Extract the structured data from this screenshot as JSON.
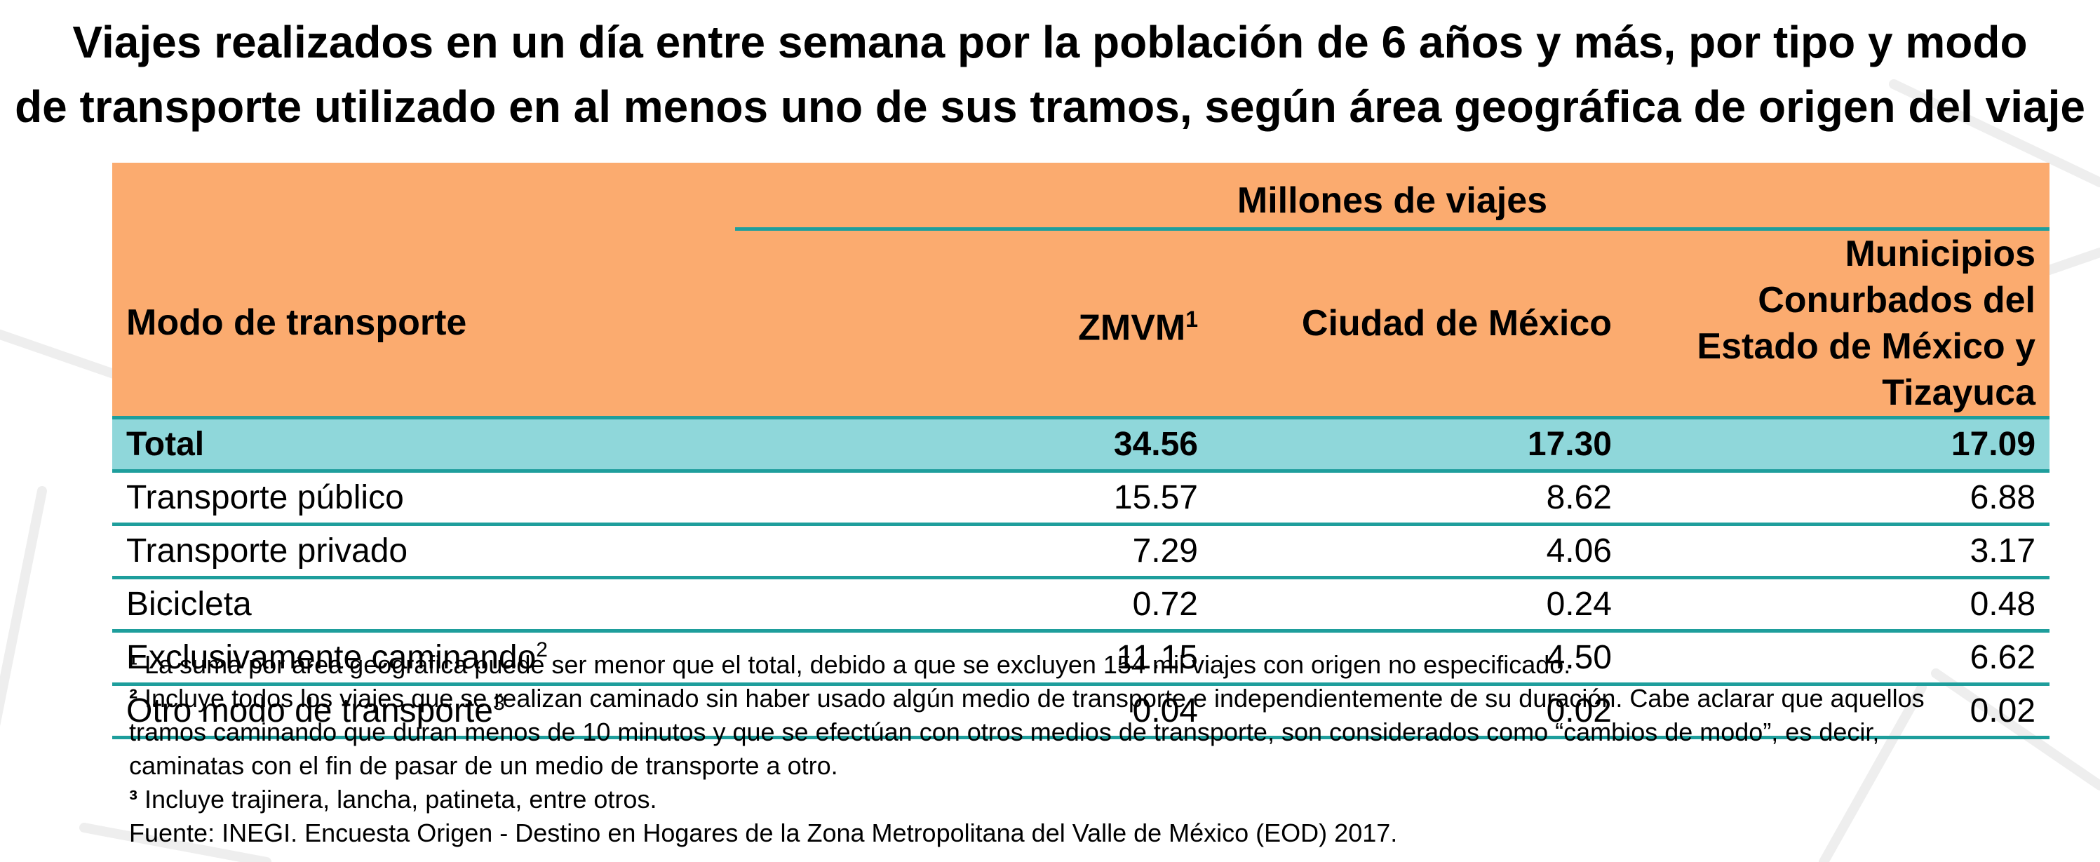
{
  "title": {
    "line1": "Viajes realizados en un día entre semana por la población de 6 años y más, por tipo y modo",
    "line2": "de transporte utilizado en al menos uno de sus tramos, según área geográfica de origen del viaje"
  },
  "table": {
    "group_header": "Millones de viajes",
    "row_header": "Modo de transporte",
    "columns": [
      "ZMVM",
      "Ciudad de México",
      "Municipios Conurbados del",
      "Estado de México y Tizayuca"
    ],
    "zmvm_sup": "1",
    "rows": [
      {
        "label": "Total",
        "sup": "",
        "values": [
          "34.56",
          "17.30",
          "17.09"
        ]
      },
      {
        "label": "Transporte público",
        "sup": "",
        "values": [
          "15.57",
          "8.62",
          "6.88"
        ]
      },
      {
        "label": "Transporte privado",
        "sup": "",
        "values": [
          "7.29",
          "4.06",
          "3.17"
        ]
      },
      {
        "label": "Bicicleta",
        "sup": "",
        "values": [
          "0.72",
          "0.24",
          "0.48"
        ]
      },
      {
        "label": "Exclusivamente caminando",
        "sup": "2",
        "values": [
          "11.15",
          "4.50",
          "6.62"
        ]
      },
      {
        "label": "Otro modo de transporte",
        "sup": "3",
        "values": [
          "0.04",
          "0.02",
          "0.02"
        ]
      }
    ]
  },
  "notes": {
    "n1_mark": "¹",
    "n1": "La suma por área geográfica puede ser menor que el total, debido a que se excluyen 154 mil viajes con origen no especificado.",
    "n2_mark": "²",
    "n2_line1": "Incluye todos los viajes que se realizan caminado sin haber usado algún medio de transporte e independientemente de su duración. Cabe aclarar que aquellos",
    "n2_line2": "tramos caminando que duran menos de 10 minutos y que se efectúan con otros medios de transporte, son considerados como “cambios de modo”, es decir,",
    "n2_line3": "caminatas con el fin de pasar de un medio de transporte a otro.",
    "n3_mark": "³",
    "n3": "Incluye trajinera, lancha, patineta, entre otros.",
    "source": "Fuente: INEGI. Encuesta Origen - Destino en Hogares de la Zona Metropolitana del Valle de México (EOD) 2017."
  },
  "colors": {
    "header_bg": "#fbab6f",
    "total_bg": "#8fd7da",
    "rule": "#1e9e9c"
  }
}
